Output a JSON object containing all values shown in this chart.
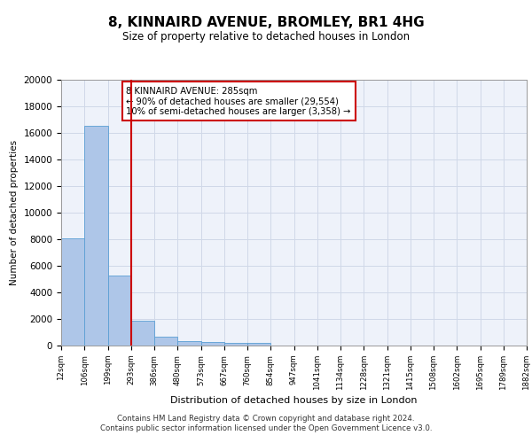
{
  "title": "8, KINNAIRD AVENUE, BROMLEY, BR1 4HG",
  "subtitle": "Size of property relative to detached houses in London",
  "xlabel": "Distribution of detached houses by size in London",
  "ylabel": "Number of detached properties",
  "bar_color": "#aec6e8",
  "bar_edge_color": "#5a9fd4",
  "vline_color": "#cc0000",
  "vline_x": 3,
  "annotation_text": "8 KINNAIRD AVENUE: 285sqm\n← 90% of detached houses are smaller (29,554)\n10% of semi-detached houses are larger (3,358) →",
  "annotation_box_color": "#cc0000",
  "grid_color": "#d0d8e8",
  "background_color": "#eef2fa",
  "footer_line1": "Contains HM Land Registry data © Crown copyright and database right 2024.",
  "footer_line2": "Contains public sector information licensed under the Open Government Licence v3.0.",
  "bin_labels": [
    "12sqm",
    "106sqm",
    "199sqm",
    "293sqm",
    "386sqm",
    "480sqm",
    "573sqm",
    "667sqm",
    "760sqm",
    "854sqm",
    "947sqm",
    "1041sqm",
    "1134sqm",
    "1228sqm",
    "1321sqm",
    "1415sqm",
    "1508sqm",
    "1602sqm",
    "1695sqm",
    "1789sqm",
    "1882sqm"
  ],
  "bar_heights": [
    8100,
    16500,
    5300,
    1850,
    680,
    350,
    270,
    210,
    190,
    0,
    0,
    0,
    0,
    0,
    0,
    0,
    0,
    0,
    0,
    0
  ],
  "ylim": [
    0,
    20000
  ],
  "yticks": [
    0,
    2000,
    4000,
    6000,
    8000,
    10000,
    12000,
    14000,
    16000,
    18000,
    20000
  ]
}
